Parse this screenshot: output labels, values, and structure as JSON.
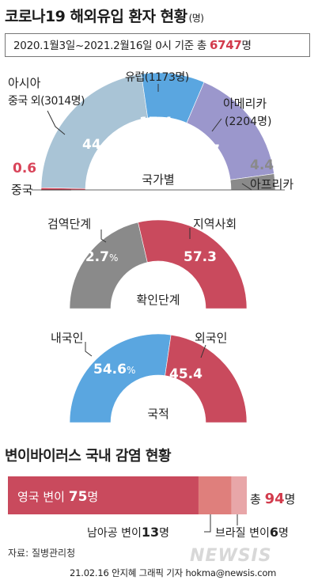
{
  "header": {
    "title": "코로나19 해외유입 환자 현황",
    "unit": "(명)",
    "period_text": "2020.1월3일~2021.2월16일 0시 기준 총 ",
    "total": "6747",
    "total_unit": "명"
  },
  "chart_data": [
    {
      "type": "pie",
      "variant": "semi-donut",
      "center_label": "국가별",
      "slices": [
        {
          "name": "중국",
          "value": 0.6,
          "count": null,
          "color": "#d9455a"
        },
        {
          "name": "아시아 중국 외",
          "value": 44.7,
          "count": 3014,
          "color": "#a9c4d6"
        },
        {
          "name": "유럽",
          "value": 17.4,
          "count": 1173,
          "color": "#5aa6e0"
        },
        {
          "name": "아메리카",
          "value": 32.7,
          "count": 2204,
          "color": "#9b97cc"
        },
        {
          "name": "아프리카",
          "value": 4.4,
          "count": null,
          "color": "#8a8a8a"
        }
      ]
    },
    {
      "type": "pie",
      "variant": "semi-donut",
      "center_label": "확인단계",
      "slices": [
        {
          "name": "검역단계",
          "value": 42.7,
          "color": "#8a8a8a"
        },
        {
          "name": "지역사회",
          "value": 57.3,
          "color": "#c94a5d"
        }
      ]
    },
    {
      "type": "pie",
      "variant": "semi-donut",
      "center_label": "국적",
      "slices": [
        {
          "name": "내국인",
          "value": 54.6,
          "color": "#5aa6e0"
        },
        {
          "name": "외국인",
          "value": 45.4,
          "color": "#c94a5d"
        }
      ]
    },
    {
      "type": "bar",
      "orientation": "horizontal-stacked",
      "title": "변이바이러스 국내 감염 현황",
      "total": 94,
      "segments": [
        {
          "name": "영국 변이",
          "value": 75,
          "color": "#c94a5d"
        },
        {
          "name": "남아공 변이",
          "value": 13,
          "color": "#df7f7c"
        },
        {
          "name": "브라질 변이",
          "value": 6,
          "color": "#e8a6a8"
        }
      ]
    }
  ],
  "labels": {
    "china_pct": "0.6",
    "china": "중국",
    "asia1": "아시아",
    "asia2": "중국 외(3014명)",
    "asia_pct": "44.7",
    "europe": "유럽(1173명)",
    "europe_pct": "17.4",
    "america1": "아메리카",
    "america2": "(2204명)",
    "america_pct": "32.7",
    "africa_pct": "4.4",
    "africa": "아프리카",
    "quarantine": "검역단계",
    "quarantine_pct": "42.7",
    "community": "지역사회",
    "community_pct": "57.3",
    "domestic": "내국인",
    "domestic_pct": "54.6",
    "foreign": "외국인",
    "foreign_pct": "45.4",
    "pct_sign": "%"
  },
  "variant": {
    "section_title": "변이바이러스 국내 감염 현황",
    "uk_label": "영국 변이 ",
    "uk_value": "75",
    "uk_unit": "명",
    "total_label": "총 ",
    "total_value": "94",
    "total_unit": "명",
    "sa_label": "남아공 변이",
    "sa_value": "13",
    "sa_unit": "명",
    "br_label": "브라질 변이",
    "br_value": "6",
    "br_unit": "명"
  },
  "footer": {
    "source": "자료: 질병관리청",
    "credit": "21.02.16 안지혜 그래픽 기자 hokma@newsis.com",
    "watermark": "NEWSIS"
  }
}
